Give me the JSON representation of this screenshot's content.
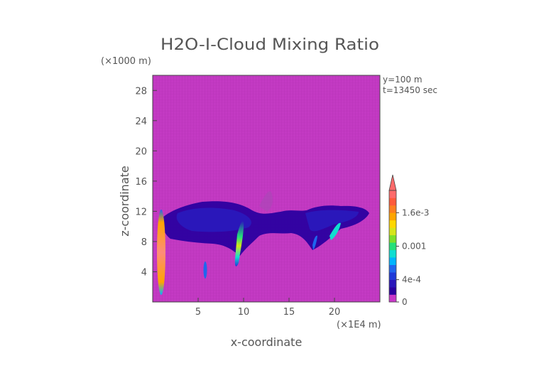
{
  "chart_data": {
    "type": "heatmap",
    "title": "H2O-I-Cloud Mixing Ratio",
    "xlabel": "x-coordinate",
    "ylabel": "z-coordinate",
    "x_unit": "(×1E4 m)",
    "y_unit": "(×1000 m)",
    "annotations": [
      "y=100 m",
      "t=13450 sec"
    ],
    "xlim": [
      0,
      25
    ],
    "ylim": [
      0,
      30
    ],
    "x_ticks": [
      5,
      10,
      15,
      20
    ],
    "y_ticks": [
      4,
      8,
      12,
      16,
      20,
      24,
      28
    ],
    "grid": false,
    "colorbar": {
      "min": 0,
      "max": 0.002,
      "labels": [
        {
          "value": 0,
          "text": "0"
        },
        {
          "value": 0.0004,
          "text": "4e-4"
        },
        {
          "value": 0.001,
          "text": "0.001"
        },
        {
          "value": 0.0016,
          "text": "1.6e-3"
        }
      ],
      "colors": [
        "#c837c8",
        "#2b00a0",
        "#2a17ba",
        "#1e3ad8",
        "#1f66ee",
        "#00b4ff",
        "#10ddd0",
        "#25e07a",
        "#7de02a",
        "#d6e51a",
        "#ffd700",
        "#ffa500",
        "#ff7f20",
        "#ff5a3a",
        "#ff6a6a"
      ],
      "overflow_color": "#ff6a6a"
    },
    "features": [
      {
        "name": "cloud-band",
        "x_range": [
          1,
          24.5
        ],
        "z_range": [
          8.5,
          13.8
        ],
        "peak_value": 0.0003
      },
      {
        "name": "high-column",
        "x": 0.9,
        "z_range": [
          1,
          12.5
        ],
        "peak_value": 0.002
      },
      {
        "name": "mid-streak",
        "x": 9.5,
        "z_range": [
          4,
          11
        ],
        "peak_value": 0.0012
      },
      {
        "name": "small-patch",
        "x": 5.8,
        "z_range": [
          3,
          5
        ],
        "peak_value": 0.0005
      },
      {
        "name": "right-streak",
        "x": 19.5,
        "z_range": [
          9,
          11
        ],
        "peak_value": 0.0007
      }
    ]
  }
}
